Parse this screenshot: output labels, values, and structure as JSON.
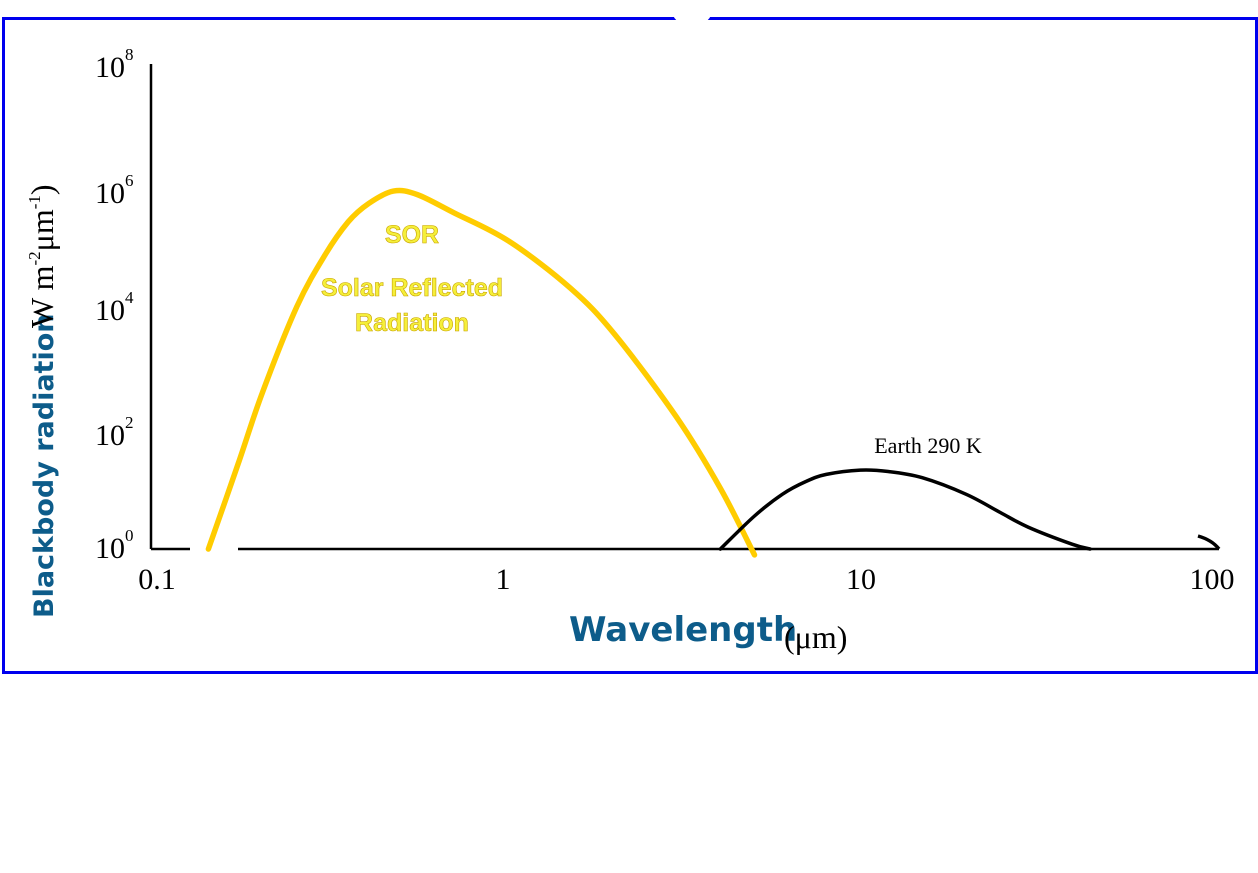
{
  "chart_data": {
    "type": "line",
    "x_scale": "log",
    "y_scale": "log",
    "xlim": [
      0.1,
      100
    ],
    "ylim": [
      1,
      100000000
    ],
    "x_ticks": [
      "0.1",
      "1",
      "10",
      "100"
    ],
    "y_ticks": [
      {
        "base": "10",
        "exp": "0"
      },
      {
        "base": "10",
        "exp": "2"
      },
      {
        "base": "10",
        "exp": "4"
      },
      {
        "base": "10",
        "exp": "6"
      },
      {
        "base": "10",
        "exp": "8"
      }
    ],
    "xlabel": "Wavelength",
    "xlabel_unit": "(μm)",
    "ylabel": "Blackbody radiation",
    "ylabel_unit": {
      "w": "W m",
      "exp1": "-2",
      "mu": "μm",
      "exp2": "-1",
      "close": ")"
    },
    "series": [
      {
        "name": "SOR",
        "annotation": [
          "Solar Reflected",
          "Radiation"
        ],
        "color": "#ffcc00",
        "x": [
          0.14,
          0.17,
          0.2,
          0.25,
          0.3,
          0.35,
          0.4,
          0.47,
          0.55,
          0.7,
          1.0,
          1.5,
          2.0,
          3.0,
          4.0,
          5.0
        ],
        "y": [
          1,
          25,
          400,
          10000,
          70000,
          250000,
          500000,
          800000,
          700000,
          350000,
          120000,
          20000,
          3500,
          150,
          10,
          0.8
        ]
      },
      {
        "name": "Earth 290 K",
        "color": "#000000",
        "x": [
          4.0,
          5.0,
          6.0,
          7.0,
          8.0,
          10.0,
          12.0,
          15.0,
          20.0,
          25.0,
          30.0,
          40.0,
          45.0
        ],
        "y": [
          1,
          3.5,
          8,
          13,
          17,
          20,
          19,
          15,
          8,
          4,
          2.3,
          1.2,
          1
        ]
      }
    ]
  }
}
